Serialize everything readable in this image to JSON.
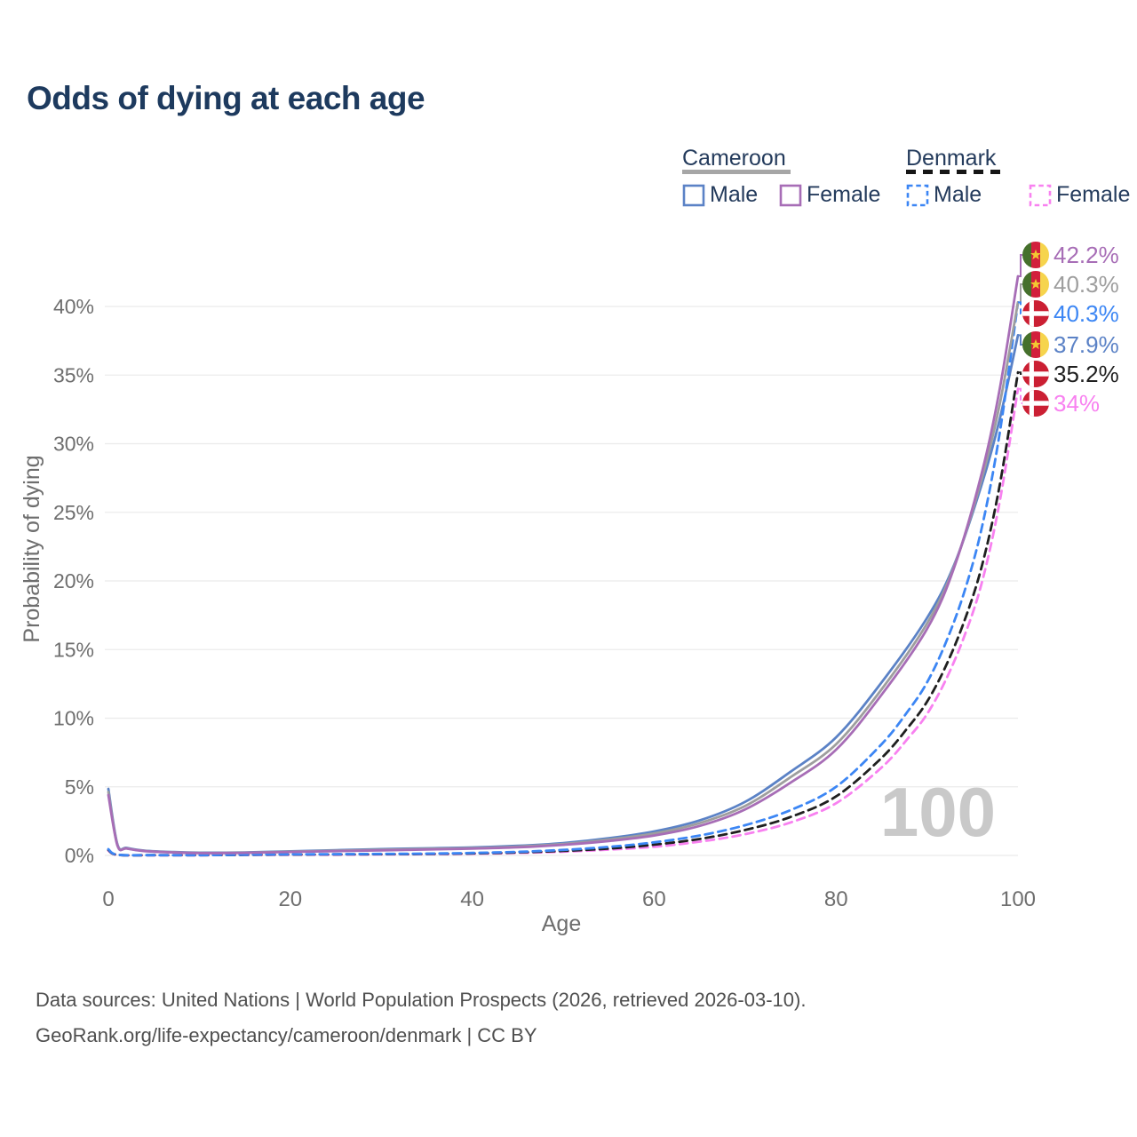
{
  "page": {
    "title": "Odds of dying at each age"
  },
  "legend": {
    "groups": [
      {
        "label": "Cameroon",
        "underline_style": "solid",
        "underline_color": "#a6a6a6",
        "items": [
          {
            "label": "Male",
            "color": "#5b82c6",
            "dashed": false
          },
          {
            "label": "Female",
            "color": "#a76db6",
            "dashed": false
          }
        ]
      },
      {
        "label": "Denmark",
        "underline_style": "dashed",
        "underline_color": "#161616",
        "items": [
          {
            "label": "Male",
            "color": "#3c86f4",
            "dashed": true
          },
          {
            "label": "Female",
            "color": "#f881f0",
            "dashed": true
          }
        ]
      }
    ]
  },
  "chart_data": {
    "type": "line",
    "title": "Odds of dying at each age",
    "xlabel": "Age",
    "ylabel": "Probability of dying",
    "x_ticks": [
      0,
      20,
      40,
      60,
      80,
      100
    ],
    "y_ticks_pct": [
      0,
      5,
      10,
      15,
      20,
      25,
      30,
      35,
      40
    ],
    "xlim": [
      0,
      100
    ],
    "ylim_pct": [
      0,
      43
    ],
    "grid": "horizontal-only",
    "legend_position": "top-right",
    "age_watermark": "100",
    "series": [
      {
        "id": "cameroon-female",
        "country": "Cameroon",
        "sex": "Female",
        "color": "#a76db6",
        "dashed": false,
        "flag": "cameroon",
        "end_label": "42.2%",
        "points": [
          [
            0,
            4.4
          ],
          [
            1,
            0.72
          ],
          [
            2,
            0.5
          ],
          [
            4,
            0.31
          ],
          [
            7,
            0.22
          ],
          [
            10,
            0.17
          ],
          [
            15,
            0.19
          ],
          [
            20,
            0.25
          ],
          [
            25,
            0.31
          ],
          [
            30,
            0.37
          ],
          [
            35,
            0.43
          ],
          [
            40,
            0.49
          ],
          [
            45,
            0.59
          ],
          [
            50,
            0.77
          ],
          [
            55,
            1.05
          ],
          [
            60,
            1.45
          ],
          [
            65,
            2.15
          ],
          [
            70,
            3.35
          ],
          [
            75,
            5.3
          ],
          [
            80,
            7.7
          ],
          [
            85,
            11.7
          ],
          [
            90,
            16.5
          ],
          [
            93,
            21.0
          ],
          [
            96,
            27.8
          ],
          [
            98,
            34.0
          ],
          [
            100,
            42.2
          ]
        ]
      },
      {
        "id": "cameroon-both",
        "country": "Cameroon",
        "sex": "Both",
        "color": "#9e9e9e",
        "dashed": false,
        "flag": "cameroon",
        "end_label": "40.3%",
        "points": [
          [
            0,
            4.62
          ],
          [
            1,
            0.76
          ],
          [
            2,
            0.52
          ],
          [
            4,
            0.33
          ],
          [
            7,
            0.23
          ],
          [
            10,
            0.18
          ],
          [
            15,
            0.2
          ],
          [
            20,
            0.27
          ],
          [
            25,
            0.34
          ],
          [
            30,
            0.41
          ],
          [
            35,
            0.47
          ],
          [
            40,
            0.53
          ],
          [
            45,
            0.64
          ],
          [
            50,
            0.83
          ],
          [
            55,
            1.15
          ],
          [
            60,
            1.6
          ],
          [
            65,
            2.35
          ],
          [
            70,
            3.6
          ],
          [
            75,
            5.7
          ],
          [
            80,
            8.1
          ],
          [
            85,
            12.1
          ],
          [
            90,
            16.9
          ],
          [
            93,
            21.1
          ],
          [
            96,
            27.4
          ],
          [
            98,
            32.9
          ],
          [
            100,
            40.3
          ]
        ]
      },
      {
        "id": "denmark-male",
        "country": "Denmark",
        "sex": "Male",
        "color": "#3c86f4",
        "dashed": true,
        "flag": "denmark",
        "end_label": "40.3%",
        "points": [
          [
            0,
            0.45
          ],
          [
            1,
            0.05
          ],
          [
            5,
            0.02
          ],
          [
            10,
            0.02
          ],
          [
            15,
            0.05
          ],
          [
            20,
            0.08
          ],
          [
            25,
            0.09
          ],
          [
            30,
            0.11
          ],
          [
            35,
            0.13
          ],
          [
            40,
            0.18
          ],
          [
            45,
            0.26
          ],
          [
            50,
            0.4
          ],
          [
            55,
            0.62
          ],
          [
            60,
            0.95
          ],
          [
            65,
            1.45
          ],
          [
            70,
            2.2
          ],
          [
            75,
            3.3
          ],
          [
            80,
            5.0
          ],
          [
            85,
            8.1
          ],
          [
            88,
            10.6
          ],
          [
            90,
            12.6
          ],
          [
            92,
            15.4
          ],
          [
            94,
            19.0
          ],
          [
            96,
            23.8
          ],
          [
            98,
            30.8
          ],
          [
            100,
            40.3
          ]
        ]
      },
      {
        "id": "cameroon-male",
        "country": "Cameroon",
        "sex": "Male",
        "color": "#5b82c6",
        "dashed": false,
        "flag": "cameroon",
        "end_label": "37.9%",
        "points": [
          [
            0,
            4.85
          ],
          [
            1,
            0.8
          ],
          [
            2,
            0.55
          ],
          [
            4,
            0.35
          ],
          [
            7,
            0.25
          ],
          [
            10,
            0.2
          ],
          [
            15,
            0.22
          ],
          [
            20,
            0.3
          ],
          [
            25,
            0.38
          ],
          [
            30,
            0.46
          ],
          [
            35,
            0.52
          ],
          [
            40,
            0.58
          ],
          [
            45,
            0.7
          ],
          [
            50,
            0.9
          ],
          [
            55,
            1.25
          ],
          [
            60,
            1.75
          ],
          [
            65,
            2.55
          ],
          [
            70,
            3.9
          ],
          [
            75,
            6.1
          ],
          [
            80,
            8.6
          ],
          [
            85,
            12.6
          ],
          [
            90,
            17.3
          ],
          [
            93,
            21.2
          ],
          [
            96,
            27.0
          ],
          [
            98,
            31.8
          ],
          [
            100,
            37.9
          ]
        ]
      },
      {
        "id": "denmark-both",
        "country": "Denmark",
        "sex": "Both",
        "color": "#1f1f1f",
        "dashed": true,
        "flag": "denmark",
        "end_label": "35.2%",
        "points": [
          [
            0,
            0.4
          ],
          [
            1,
            0.045
          ],
          [
            5,
            0.018
          ],
          [
            10,
            0.018
          ],
          [
            15,
            0.04
          ],
          [
            20,
            0.065
          ],
          [
            25,
            0.075
          ],
          [
            30,
            0.09
          ],
          [
            35,
            0.11
          ],
          [
            40,
            0.15
          ],
          [
            45,
            0.22
          ],
          [
            50,
            0.33
          ],
          [
            55,
            0.5
          ],
          [
            60,
            0.78
          ],
          [
            65,
            1.2
          ],
          [
            70,
            1.85
          ],
          [
            75,
            2.8
          ],
          [
            80,
            4.3
          ],
          [
            85,
            7.1
          ],
          [
            88,
            9.4
          ],
          [
            90,
            11.2
          ],
          [
            92,
            13.7
          ],
          [
            94,
            16.9
          ],
          [
            96,
            21.0
          ],
          [
            98,
            27.0
          ],
          [
            100,
            35.2
          ]
        ]
      },
      {
        "id": "denmark-female",
        "country": "Denmark",
        "sex": "Female",
        "color": "#f881f0",
        "dashed": true,
        "flag": "denmark",
        "end_label": "34%",
        "points": [
          [
            0,
            0.35
          ],
          [
            1,
            0.04
          ],
          [
            5,
            0.015
          ],
          [
            10,
            0.015
          ],
          [
            15,
            0.03
          ],
          [
            20,
            0.045
          ],
          [
            25,
            0.055
          ],
          [
            30,
            0.07
          ],
          [
            35,
            0.09
          ],
          [
            40,
            0.12
          ],
          [
            45,
            0.18
          ],
          [
            50,
            0.27
          ],
          [
            55,
            0.42
          ],
          [
            60,
            0.63
          ],
          [
            65,
            1.0
          ],
          [
            70,
            1.55
          ],
          [
            75,
            2.4
          ],
          [
            80,
            3.8
          ],
          [
            85,
            6.4
          ],
          [
            88,
            8.6
          ],
          [
            90,
            10.3
          ],
          [
            92,
            12.7
          ],
          [
            94,
            15.8
          ],
          [
            96,
            19.8
          ],
          [
            98,
            25.8
          ],
          [
            100,
            34.0
          ]
        ]
      }
    ]
  },
  "footer": {
    "line1": "Data sources: United Nations | World Population Prospects (2026, retrieved 2026-03-10).",
    "line2": "GeoRank.org/life-expectancy/cameroon/denmark | CC BY"
  }
}
